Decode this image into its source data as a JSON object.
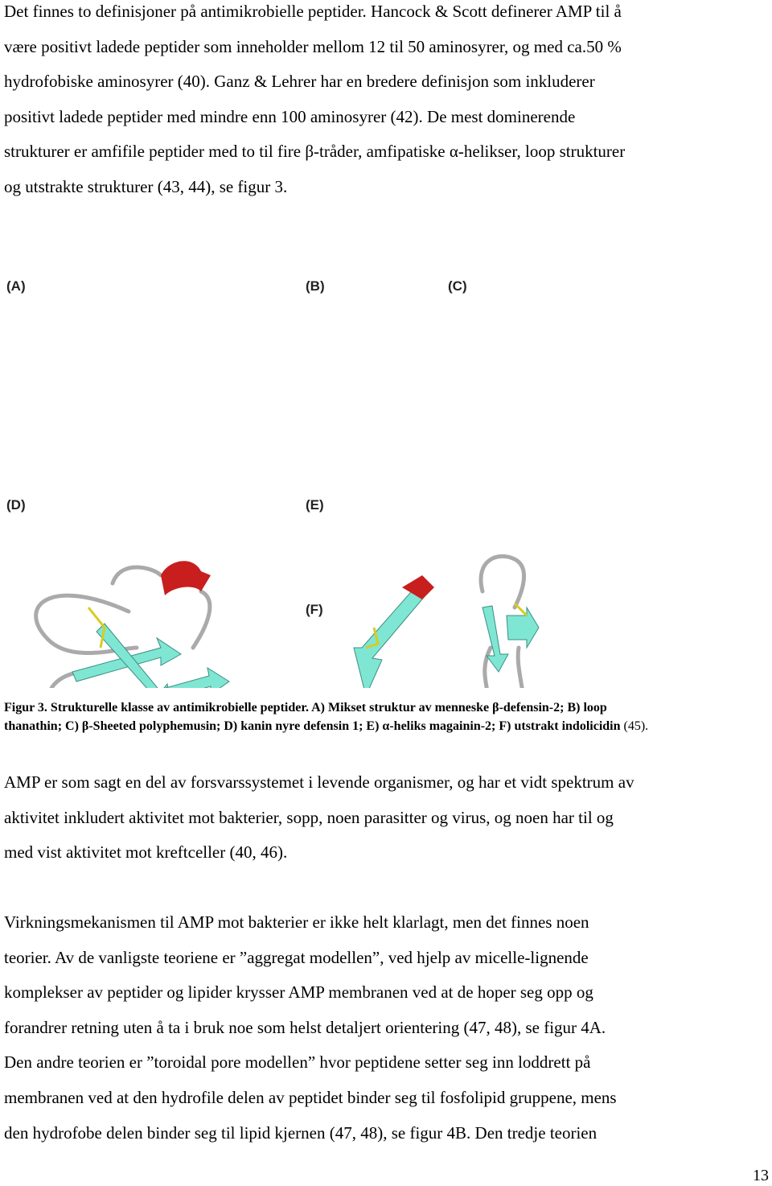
{
  "paragraphs": [
    {
      "lines": [
        "Det finnes to definisjoner på antimikrobielle peptider. Hancock & Scott definerer AMP til å",
        "være positivt ladede peptider som inneholder mellom 12 til 50 aminosyrer, og med ca.50 %",
        "hydrofobiske aminosyrer (40). Ganz & Lehrer har en bredere definisjon som inkluderer",
        "positivt ladede peptider med mindre enn 100 aminosyrer (42). De mest dominerende",
        "strukturer er amfifile peptider med to til fire β-tråder, amfipatiske α-helikser, loop strukturer",
        "og utstrakte strukturer (43, 44), se figur 3."
      ]
    },
    {
      "lines": [
        "AMP er som sagt en del av forsvarssystemet i levende organismer, og har et vidt spektrum av",
        "aktivitet inkludert aktivitet mot bakterier, sopp, noen parasitter og virus, og noen har til og",
        "med vist aktivitet mot kreftceller (40, 46)."
      ]
    },
    {
      "lines": [
        "Virkningsmekanismen til AMP mot bakterier er ikke helt klarlagt, men det finnes noen",
        "teorier. Av de vanligste teoriene er ”aggregat modellen”, ved hjelp av micelle-lignende",
        "komplekser av peptider og lipider krysser AMP membranen ved at de hoper seg opp og",
        "forandrer retning uten å ta i bruk noe som helst detaljert orientering (47, 48), se figur 4A.",
        "Den andre teorien er ”toroidal pore modellen” hvor peptidene setter seg inn loddrett på",
        "membranen ved at den hydrofile delen av peptidet binder seg til fosfolipid gruppene, mens",
        "den hydrofobe delen binder seg til lipid kjernen (47, 48), se figur 4B. Den tredje teorien"
      ]
    }
  ],
  "figure": {
    "panels": [
      "(A)",
      "(B)",
      "(C)",
      "(D)",
      "(E)",
      "(F)"
    ],
    "caption": {
      "lines": [
        "Figur 3. Strukturelle klasse av antimikrobielle peptider. A) Mikset struktur av menneske β-defensin-2; B) loop",
        "thanathin; C) β-Sheeted polyphemusin; D) kanin nyre defensin 1; E) α-heliks magainin-2; F) utstrakt indolicidin"
      ],
      "reference": "(45)."
    }
  },
  "page_number": "13"
}
